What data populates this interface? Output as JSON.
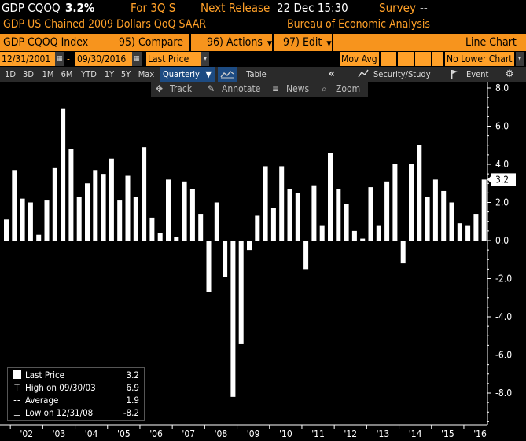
{
  "header": {
    "ticker": "GDP CQOQ",
    "value": "3.2%",
    "period": "For 3Q S",
    "next_release_label": "Next Release",
    "next_release_value": "22 Dec 15:30",
    "survey_label": "Survey",
    "survey_value": "--",
    "description": "GDP US Chained 2009 Dollars QoQ SAAR",
    "source": "Bureau of Economic Analysis"
  },
  "menubar": {
    "index_label": "GDP CQOQ Index",
    "compare": "95) Compare",
    "actions": "96) Actions",
    "edit": "97) Edit",
    "chart_type": "Line Chart"
  },
  "controls": {
    "start_date": "12/31/2001",
    "end_date": "09/30/2016",
    "field": "Last Price",
    "mov_avg": "Mov Avg",
    "lower_chart": "No Lower Chart"
  },
  "toolbar": {
    "ranges": [
      "1D",
      "3D",
      "1M",
      "6M",
      "YTD",
      "1Y",
      "5Y",
      "Max"
    ],
    "frequency": "Quarterly",
    "table_label": "Table",
    "security_study": "Security/Study",
    "event": "Event"
  },
  "subtoolbar": {
    "track": "Track",
    "annotate": "Annotate",
    "news": "News",
    "zoom": "Zoom"
  },
  "legend": {
    "last_price_label": "Last Price",
    "last_price_value": "3.2",
    "high_label": "High on 09/30/03",
    "high_value": "6.9",
    "average_label": "Average",
    "average_value": "1.9",
    "low_label": "Low on 12/31/08",
    "low_value": "-8.2"
  },
  "chart_data": {
    "type": "bar",
    "ylim": [
      -9.3,
      8.0
    ],
    "yticks": [
      8.0,
      6.0,
      4.0,
      2.0,
      0.0,
      -2.0,
      -4.0,
      -6.0,
      -8.0
    ],
    "last_value_label": "3.2",
    "year_labels": [
      "'02",
      "'03",
      "'04",
      "'05",
      "'06",
      "'07",
      "'08",
      "'09",
      "'10",
      "'11",
      "'12",
      "'13",
      "'14",
      "'15",
      "'16"
    ],
    "categories": [
      "Q4 2001",
      "Q1 2002",
      "Q2 2002",
      "Q3 2002",
      "Q4 2002",
      "Q1 2003",
      "Q2 2003",
      "Q3 2003",
      "Q4 2003",
      "Q1 2004",
      "Q2 2004",
      "Q3 2004",
      "Q4 2004",
      "Q1 2005",
      "Q2 2005",
      "Q3 2005",
      "Q4 2005",
      "Q1 2006",
      "Q2 2006",
      "Q3 2006",
      "Q4 2006",
      "Q1 2007",
      "Q2 2007",
      "Q3 2007",
      "Q4 2007",
      "Q1 2008",
      "Q2 2008",
      "Q3 2008",
      "Q4 2008",
      "Q1 2009",
      "Q2 2009",
      "Q3 2009",
      "Q4 2009",
      "Q1 2010",
      "Q2 2010",
      "Q3 2010",
      "Q4 2010",
      "Q1 2011",
      "Q2 2011",
      "Q3 2011",
      "Q4 2011",
      "Q1 2012",
      "Q2 2012",
      "Q3 2012",
      "Q4 2012",
      "Q1 2013",
      "Q2 2013",
      "Q3 2013",
      "Q4 2013",
      "Q1 2014",
      "Q2 2014",
      "Q3 2014",
      "Q4 2014",
      "Q1 2015",
      "Q2 2015",
      "Q3 2015",
      "Q4 2015",
      "Q1 2016",
      "Q2 2016",
      "Q3 2016"
    ],
    "values": [
      1.1,
      3.7,
      2.2,
      2.0,
      0.3,
      2.1,
      3.8,
      6.9,
      4.8,
      2.3,
      3.0,
      3.7,
      3.5,
      4.3,
      2.1,
      3.4,
      2.3,
      4.9,
      1.2,
      0.4,
      3.2,
      0.2,
      3.1,
      2.7,
      1.4,
      -2.7,
      2.0,
      -1.9,
      -8.2,
      -5.4,
      -0.5,
      1.3,
      3.9,
      1.7,
      3.9,
      2.7,
      2.5,
      -1.5,
      2.9,
      0.8,
      4.6,
      2.7,
      1.9,
      0.5,
      0.1,
      2.8,
      0.8,
      3.1,
      4.0,
      -1.2,
      4.0,
      5.0,
      2.3,
      3.2,
      2.6,
      2.0,
      0.9,
      0.8,
      1.4,
      3.2
    ]
  }
}
